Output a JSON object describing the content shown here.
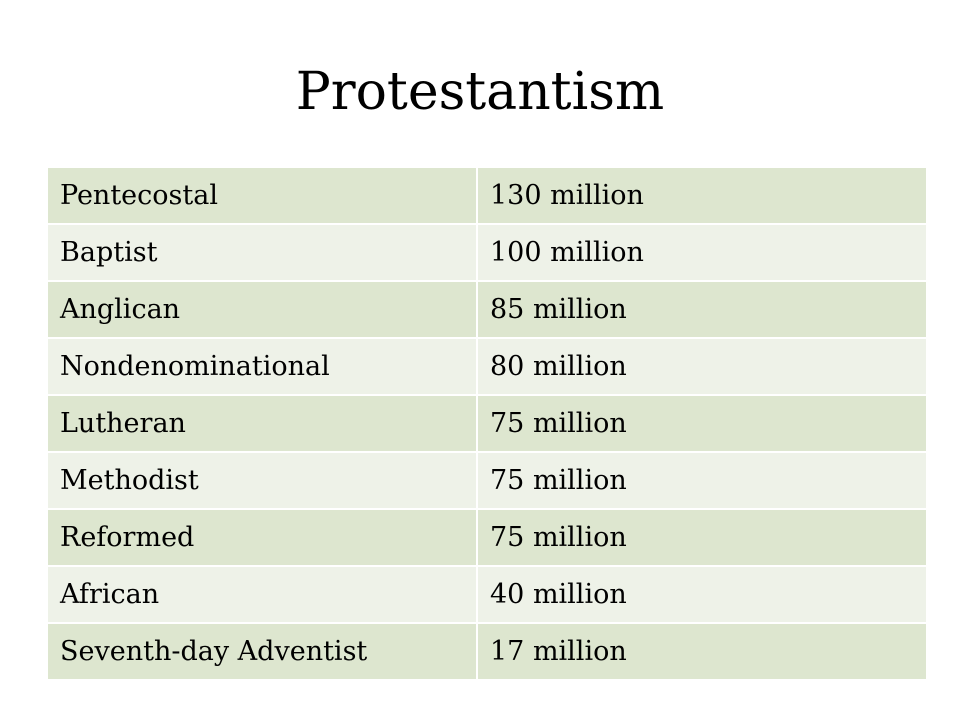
{
  "slide": {
    "title": "Protestantism",
    "colors": {
      "row_dark": "#dde6cf",
      "row_light": "#eef2e8"
    }
  },
  "table": {
    "rows": [
      {
        "denomination": "Pentecostal",
        "adherents": "130 million"
      },
      {
        "denomination": "Baptist",
        "adherents": "100 million"
      },
      {
        "denomination": "Anglican",
        "adherents": "85 million"
      },
      {
        "denomination": "Nondenominational",
        "adherents": "80 million"
      },
      {
        "denomination": "Lutheran",
        "adherents": "75 million"
      },
      {
        "denomination": "Methodist",
        "adherents": "75 million"
      },
      {
        "denomination": "Reformed",
        "adherents": "75 million"
      },
      {
        "denomination": "African",
        "adherents": "40 million"
      },
      {
        "denomination": "Seventh-day Adventist",
        "adherents": "17 million"
      }
    ]
  }
}
